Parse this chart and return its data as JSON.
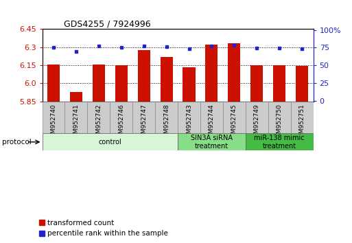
{
  "title": "GDS4255 / 7924996",
  "samples": [
    "GSM952740",
    "GSM952741",
    "GSM952742",
    "GSM952746",
    "GSM952747",
    "GSM952748",
    "GSM952743",
    "GSM952744",
    "GSM952745",
    "GSM952749",
    "GSM952750",
    "GSM952751"
  ],
  "red_values": [
    6.155,
    5.93,
    6.155,
    6.15,
    6.275,
    6.22,
    6.135,
    6.32,
    6.335,
    6.15,
    6.15,
    6.145
  ],
  "blue_values": [
    75,
    70,
    77,
    75,
    77,
    76,
    73,
    77,
    78,
    74,
    74,
    73
  ],
  "y_min": 5.85,
  "y_max": 6.45,
  "y_ticks": [
    5.85,
    6.0,
    6.15,
    6.3,
    6.45
  ],
  "y2_ticks": [
    0,
    25,
    50,
    75,
    100
  ],
  "red_color": "#cc1100",
  "blue_color": "#2222cc",
  "dotted_line_color": "#000000",
  "dotted_lines": [
    6.0,
    6.15,
    6.3
  ],
  "bar_width": 0.55,
  "groups": [
    {
      "label": "control",
      "start": 0,
      "end": 6,
      "color": "#d8f5d8"
    },
    {
      "label": "SIN3A siRNA\ntreatment",
      "start": 6,
      "end": 9,
      "color": "#88dd88"
    },
    {
      "label": "miR-138 mimic\ntreatment",
      "start": 9,
      "end": 12,
      "color": "#44bb44"
    }
  ],
  "protocol_label": "protocol",
  "legend_items": [
    {
      "label": "transformed count",
      "color": "#cc1100"
    },
    {
      "label": "percentile rank within the sample",
      "color": "#2222cc"
    }
  ],
  "tick_label_color_left": "#cc1100",
  "tick_label_color_right": "#2222cc",
  "xtick_bg_color": "#cccccc",
  "xtick_grid_color": "#888888"
}
